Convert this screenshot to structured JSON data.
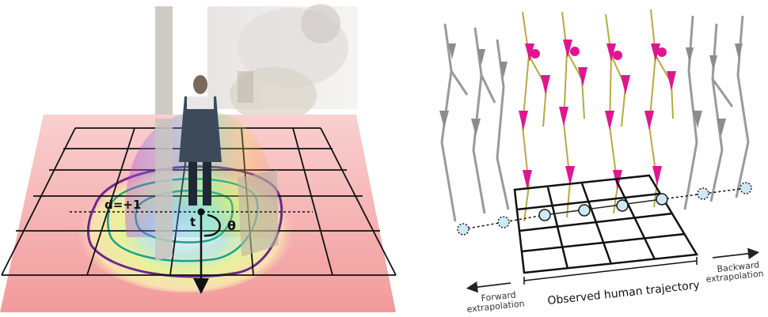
{
  "left_panel": {
    "labels": {
      "d": "d=+1",
      "t": "t",
      "theta": "θ"
    },
    "colors": {
      "floor": "#f7b2b2",
      "grid": "#101010",
      "contour_outer": "#6a2a8a",
      "contour_inner": "#1aa08c"
    }
  },
  "right_panel": {
    "labels": {
      "observed": "Observed human trajectory",
      "forward": [
        "Forward",
        "extrapolation"
      ],
      "backward": [
        "Backward",
        "extrapolation"
      ]
    },
    "colors": {
      "skeleton_observed": "#e0168f",
      "skeleton_extrapolated": "#8c8c8c",
      "trajectory_node": "#cfe8f5",
      "bone": "#b8a840"
    }
  }
}
